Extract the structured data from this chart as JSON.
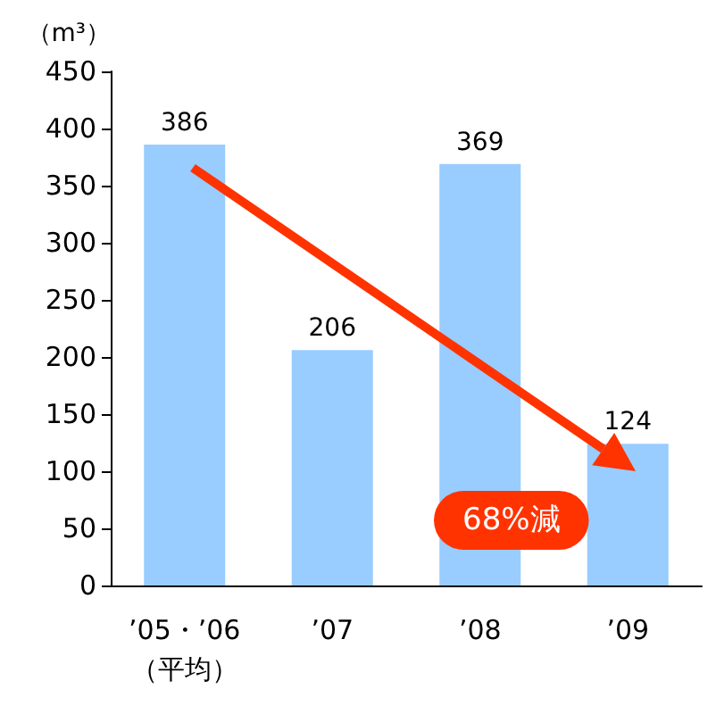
{
  "chart_data": {
    "type": "bar",
    "ylabel": "（m³）",
    "categories": [
      "’05・’06\n（平均）",
      "’07",
      "’08",
      "’09"
    ],
    "values": [
      386,
      206,
      369,
      124
    ],
    "color": "#99ccff",
    "ylim": [
      0,
      450
    ],
    "yticks": [
      0,
      50,
      100,
      150,
      200,
      250,
      300,
      350,
      400,
      450
    ],
    "grid": false,
    "data_labels": true,
    "annotations": [
      "68%減"
    ]
  }
}
